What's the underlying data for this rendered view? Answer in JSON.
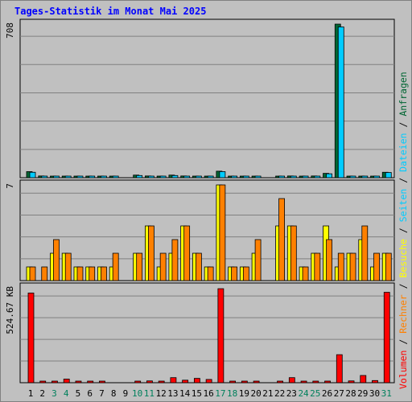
{
  "chart_data": {
    "type": "bar",
    "title": "Tages-Statistik im Monat Mai 2025",
    "days": [
      "1",
      "2",
      "3",
      "4",
      "5",
      "6",
      "7",
      "8",
      "9",
      "10",
      "11",
      "12",
      "13",
      "14",
      "15",
      "16",
      "17",
      "18",
      "19",
      "20",
      "21",
      "22",
      "23",
      "24",
      "25",
      "26",
      "27",
      "28",
      "29",
      "30",
      "31"
    ],
    "weekend_days": [
      "3",
      "4",
      "10",
      "11",
      "17",
      "18",
      "24",
      "25",
      "31"
    ],
    "panels": [
      {
        "id": "top",
        "ylabel": "708",
        "ymax": 708,
        "series": [
          {
            "name": "Anfragen",
            "color": "#006633",
            "values": [
              28,
              8,
              5,
              5,
              5,
              5,
              5,
              5,
              0,
              12,
              8,
              5,
              12,
              8,
              5,
              5,
              30,
              5,
              5,
              5,
              0,
              6,
              8,
              5,
              8,
              20,
              708,
              5,
              6,
              5,
              25
            ]
          },
          {
            "name": "Dateien",
            "color": "#00ccff",
            "values": [
              25,
              1,
              1,
              1,
              1,
              1,
              1,
              1,
              0,
              10,
              6,
              1,
              10,
              6,
              1,
              1,
              28,
              1,
              1,
              1,
              0,
              5,
              6,
              1,
              6,
              18,
              695,
              1,
              4,
              1,
              24
            ]
          }
        ]
      },
      {
        "id": "middle",
        "ylabel": "7",
        "ymax": 7,
        "series": [
          {
            "name": "Seiten",
            "color": "#00ccff",
            "values": []
          },
          {
            "name": "Besuche",
            "color": "#ffff00",
            "values": [
              1,
              0,
              2,
              2,
              1,
              1,
              1,
              1,
              0,
              2,
              4,
              1,
              2,
              4,
              2,
              1,
              7,
              1,
              1,
              2,
              0,
              4,
              4,
              1,
              2,
              4,
              1,
              2,
              3,
              1,
              2
            ]
          },
          {
            "name": "Rechner",
            "color": "#ff8000",
            "values": [
              1,
              1,
              3,
              2,
              1,
              1,
              1,
              2,
              0,
              2,
              4,
              2,
              3,
              4,
              2,
              1,
              7,
              1,
              1,
              3,
              0,
              6,
              4,
              1,
              2,
              3,
              2,
              2,
              4,
              2,
              2
            ]
          }
        ]
      },
      {
        "id": "bottom",
        "ylabel": "524.67 KB",
        "ymax": 524.67,
        "series": [
          {
            "name": "Volumen",
            "color": "#ff0000",
            "values": [
              496,
              4,
              8,
              20,
              5,
              5,
              5,
              0,
              0,
              5,
              10,
              8,
              28,
              14,
              24,
              18,
              520,
              5,
              5,
              6,
              0,
              8,
              28,
              6,
              6,
              9,
              155,
              10,
              40,
              12,
              500
            ]
          }
        ]
      }
    ],
    "legend": [
      "Volumen",
      "Rechner",
      "Besuche",
      "Seiten",
      "Dateien",
      "Anfragen"
    ],
    "legend_separator": " / "
  },
  "colors": {
    "background": "#c0c0c0",
    "panel": "#c0c0c0",
    "grid": "#808080",
    "weekday_label": "#000000",
    "weekend_label": "#00805c",
    "title": "#0000ff"
  }
}
